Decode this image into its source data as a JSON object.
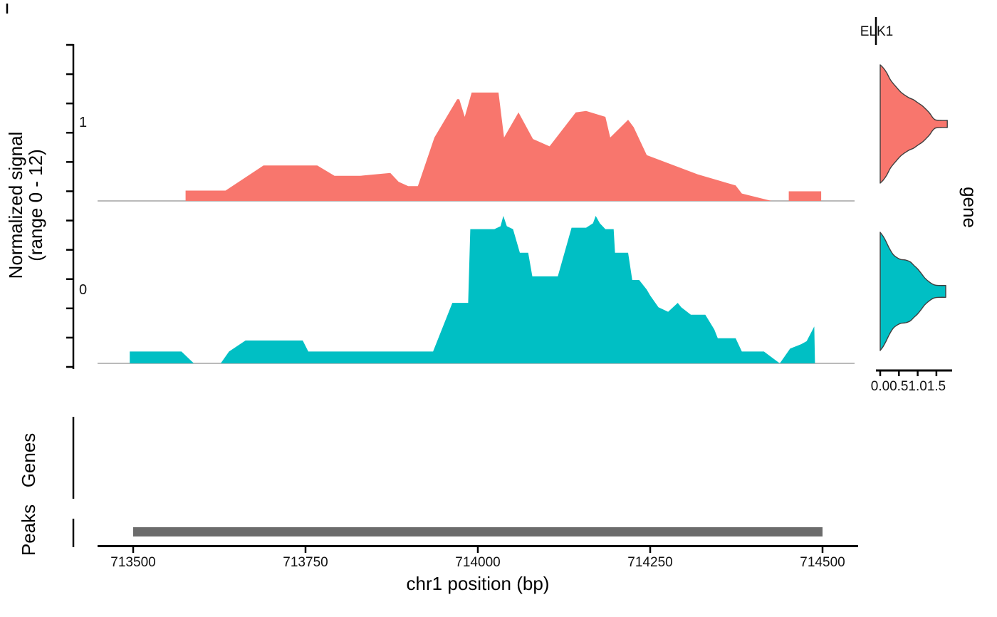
{
  "figure_type": "single-cell coverage plot with expression violins",
  "colors": {
    "group_1": "#F8766D",
    "group_0": "#00BFC4",
    "peak_bar": "#6C6C6C",
    "baseline": "#A3A3A3",
    "axis": "#000000",
    "violin_stroke": "#3F3F3F",
    "background": "#FFFFFF"
  },
  "chart_data": {
    "type": "area",
    "region": {
      "chrom": "chr1",
      "start": 713500,
      "end": 714500
    },
    "x_axis": {
      "label": "chr1 position (bp)",
      "ticks": [
        713500,
        713750,
        714000,
        714250,
        714500
      ]
    },
    "signal_axis": {
      "label_line1": "Normalized signal",
      "label_line2": "(range 0 - 12)",
      "max_signal": 12,
      "group_labels": [
        "1",
        "0"
      ]
    },
    "coverage_tracks": [
      {
        "group": "1",
        "color": "#F8766D",
        "points": [
          [
            713576,
            0
          ],
          [
            713576,
            0.07
          ],
          [
            713634,
            0.07
          ],
          [
            713689,
            0.24
          ],
          [
            713767,
            0.24
          ],
          [
            713792,
            0.17
          ],
          [
            713829,
            0.17
          ],
          [
            713873,
            0.19
          ],
          [
            713885,
            0.13
          ],
          [
            713899,
            0.1
          ],
          [
            713913,
            0.1
          ],
          [
            713937,
            0.43
          ],
          [
            713970,
            0.69
          ],
          [
            713973,
            0.69
          ],
          [
            713981,
            0.57
          ],
          [
            713991,
            0.735
          ],
          [
            714030,
            0.735
          ],
          [
            714038,
            0.43
          ],
          [
            714059,
            0.6
          ],
          [
            714080,
            0.42
          ],
          [
            714104,
            0.37
          ],
          [
            714142,
            0.6
          ],
          [
            714157,
            0.61
          ],
          [
            714185,
            0.57
          ],
          [
            714192,
            0.43
          ],
          [
            714218,
            0.55
          ],
          [
            714226,
            0.5
          ],
          [
            714245,
            0.31
          ],
          [
            714319,
            0.18
          ],
          [
            714374,
            0.105
          ],
          [
            714383,
            0.05
          ],
          [
            714426,
            0
          ],
          [
            714451,
            0
          ],
          [
            714451,
            0.065
          ],
          [
            714498,
            0.065
          ],
          [
            714498,
            0
          ]
        ]
      },
      {
        "group": "0",
        "color": "#00BFC4",
        "points": [
          [
            713495,
            0
          ],
          [
            713495,
            0.08
          ],
          [
            713570,
            0.08
          ],
          [
            713588,
            0
          ],
          [
            713627,
            0
          ],
          [
            713639,
            0.08
          ],
          [
            713663,
            0.155
          ],
          [
            713746,
            0.155
          ],
          [
            713754,
            0.08
          ],
          [
            713935,
            0.08
          ],
          [
            713963,
            0.41
          ],
          [
            713986,
            0.41
          ],
          [
            713989,
            0.91
          ],
          [
            714024,
            0.91
          ],
          [
            714033,
            0.93
          ],
          [
            714037,
            1.0
          ],
          [
            714042,
            0.93
          ],
          [
            714051,
            0.91
          ],
          [
            714061,
            0.75
          ],
          [
            714073,
            0.75
          ],
          [
            714079,
            0.59
          ],
          [
            714116,
            0.59
          ],
          [
            714136,
            0.92
          ],
          [
            714157,
            0.92
          ],
          [
            714167,
            0.95
          ],
          [
            714171,
            1.0
          ],
          [
            714177,
            0.95
          ],
          [
            714185,
            0.91
          ],
          [
            714197,
            0.91
          ],
          [
            714199,
            0.75
          ],
          [
            714218,
            0.75
          ],
          [
            714224,
            0.565
          ],
          [
            714234,
            0.565
          ],
          [
            714245,
            0.5
          ],
          [
            714250,
            0.46
          ],
          [
            714262,
            0.38
          ],
          [
            714276,
            0.35
          ],
          [
            714290,
            0.41
          ],
          [
            714295,
            0.38
          ],
          [
            714309,
            0.33
          ],
          [
            714330,
            0.33
          ],
          [
            714343,
            0.23
          ],
          [
            714348,
            0.17
          ],
          [
            714374,
            0.17
          ],
          [
            714383,
            0.08
          ],
          [
            714415,
            0.08
          ],
          [
            714438,
            0
          ],
          [
            714453,
            0.1
          ],
          [
            714469,
            0.13
          ],
          [
            714477,
            0.15
          ],
          [
            714488,
            0.25
          ],
          [
            714489,
            0
          ]
        ]
      }
    ],
    "expression_violins": {
      "gene": "ELK1",
      "axis_label": "gene",
      "ticks": [
        0.0,
        0.5,
        1.0,
        1.5
      ],
      "violins": [
        {
          "group": "1",
          "color": "#F8766D",
          "max_expression": 1.79,
          "profile": [
            [
              0,
              1
            ],
            [
              0.08,
              0.95
            ],
            [
              0.17,
              0.87
            ],
            [
              0.28,
              0.74
            ],
            [
              0.42,
              0.63
            ],
            [
              0.55,
              0.54
            ],
            [
              0.65,
              0.49
            ],
            [
              0.78,
              0.44
            ],
            [
              0.89,
              0.41
            ],
            [
              1.0,
              0.36
            ],
            [
              1.12,
              0.31
            ],
            [
              1.22,
              0.25
            ],
            [
              1.31,
              0.19
            ],
            [
              1.4,
              0.11
            ],
            [
              1.47,
              0.07
            ],
            [
              1.6,
              0.06
            ],
            [
              1.79,
              0.06
            ]
          ]
        },
        {
          "group": "0",
          "color": "#00BFC4",
          "max_expression": 1.75,
          "profile": [
            [
              0,
              1
            ],
            [
              0.08,
              0.93
            ],
            [
              0.15,
              0.85
            ],
            [
              0.25,
              0.72
            ],
            [
              0.35,
              0.62
            ],
            [
              0.45,
              0.57
            ],
            [
              0.55,
              0.54
            ],
            [
              0.68,
              0.53
            ],
            [
              0.8,
              0.5
            ],
            [
              0.9,
              0.44
            ],
            [
              1.0,
              0.38
            ],
            [
              1.1,
              0.3
            ],
            [
              1.2,
              0.22
            ],
            [
              1.33,
              0.15
            ],
            [
              1.45,
              0.11
            ],
            [
              1.6,
              0.1
            ],
            [
              1.75,
              0.1
            ]
          ]
        }
      ]
    },
    "gene_track": {
      "label": "Genes",
      "features": []
    },
    "peak_track": {
      "label": "Peaks",
      "peaks": [
        {
          "chrom": "chr1",
          "start": 713500,
          "end": 714500
        }
      ]
    }
  }
}
